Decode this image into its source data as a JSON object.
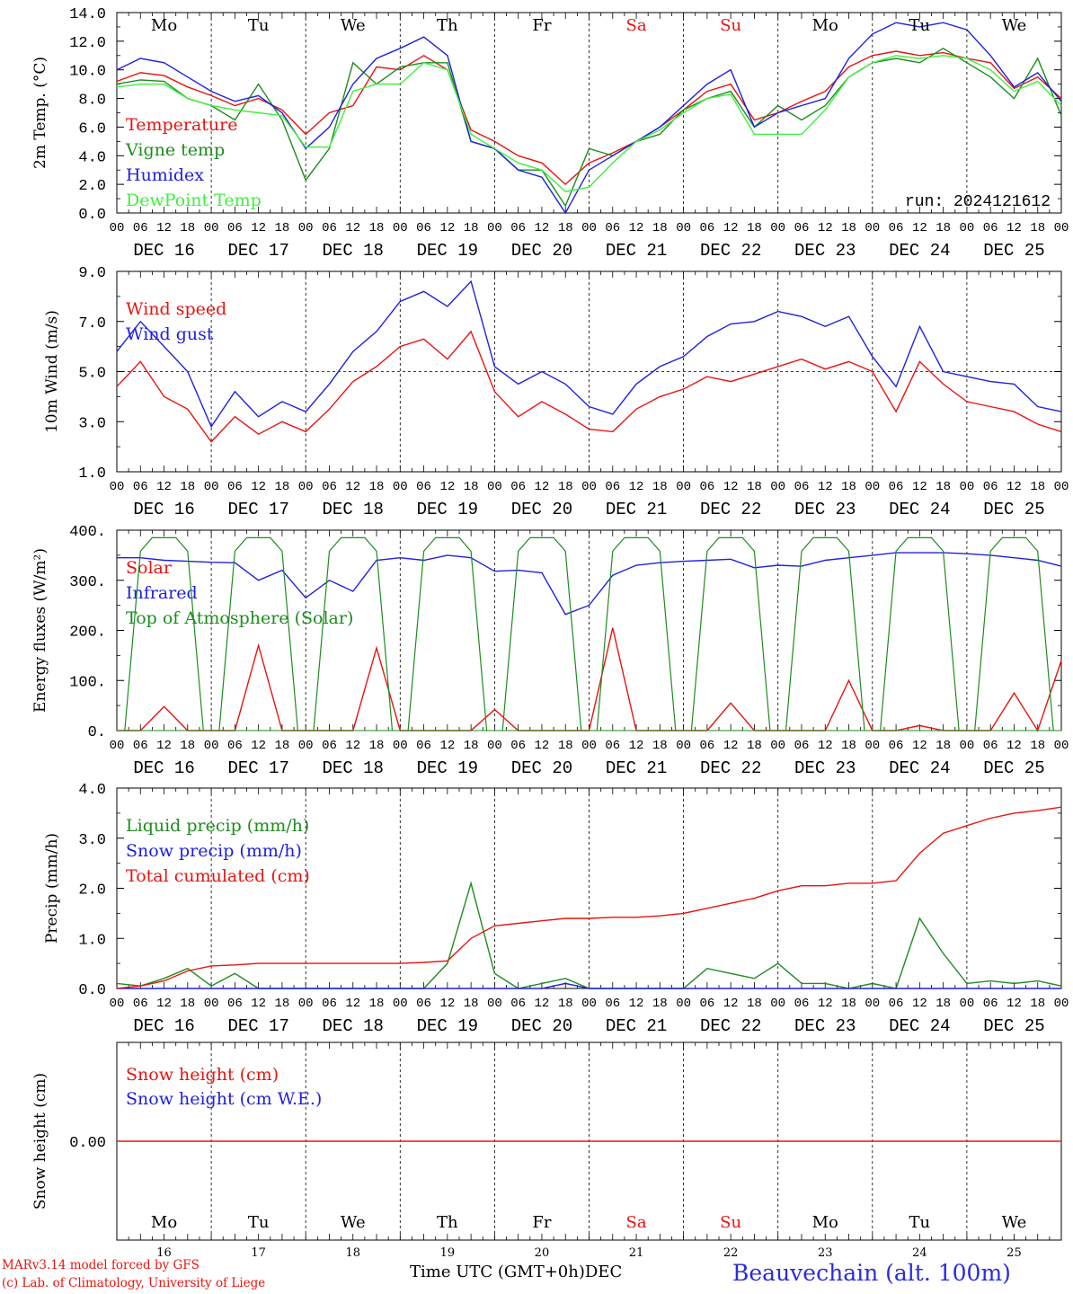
{
  "chart_data": [
    {
      "type": "line",
      "panel": "temperature",
      "ylabel": "2m Temp. (°C)",
      "ylim": [
        0,
        14
      ],
      "yticks": [
        "0.0",
        "2.0",
        "4.0",
        "6.0",
        "8.0",
        "10.0",
        "12.0",
        "14.0"
      ],
      "yticks_values": [
        0,
        2,
        4,
        6,
        8,
        10,
        12,
        14
      ],
      "weekday_labels": [
        "Mo",
        "Tu",
        "We",
        "Th",
        "Fr",
        "Sa",
        "Su",
        "Mo",
        "Tu",
        "We"
      ],
      "weekday_colors": [
        "#000000",
        "#000000",
        "#000000",
        "#000000",
        "#000000",
        "#e8140f",
        "#e8140f",
        "#000000",
        "#000000",
        "#000000"
      ],
      "annotation": "run: 2024121612",
      "x_hours": [
        0,
        6,
        12,
        18,
        24,
        30,
        36,
        42,
        48,
        54,
        60,
        66,
        72,
        78,
        84,
        90,
        96,
        102,
        108,
        114,
        120,
        126,
        132,
        138,
        144,
        150,
        156,
        162,
        168,
        174,
        180,
        186,
        192,
        198,
        204,
        210,
        216,
        222,
        228,
        234,
        240
      ],
      "series": [
        {
          "name": "Temperature",
          "color": "#e8140f",
          "values": [
            9.2,
            9.8,
            9.6,
            8.8,
            8.2,
            7.5,
            8.0,
            7.2,
            5.5,
            7.0,
            7.5,
            10.2,
            10.0,
            11.0,
            10.0,
            5.8,
            5.0,
            4.0,
            3.5,
            2.0,
            3.5,
            4.2,
            5.0,
            6.0,
            7.2,
            8.5,
            9.0,
            6.5,
            7.0,
            7.8,
            8.5,
            10.2,
            11.0,
            11.3,
            11.0,
            11.2,
            10.8,
            10.5,
            8.7,
            9.5,
            8.0
          ]
        },
        {
          "name": "Vigne temp",
          "color": "#1e8c1e",
          "values": [
            9.0,
            9.3,
            9.2,
            8.0,
            7.5,
            6.5,
            9.0,
            6.5,
            2.3,
            4.5,
            10.5,
            9.0,
            10.2,
            10.5,
            10.5,
            5.0,
            4.5,
            3.0,
            3.0,
            0.5,
            4.5,
            4.0,
            5.0,
            5.5,
            7.2,
            8.0,
            8.5,
            6.0,
            7.5,
            6.5,
            7.5,
            9.5,
            10.5,
            10.8,
            10.5,
            11.5,
            10.5,
            9.5,
            8.0,
            10.8,
            6.8
          ]
        },
        {
          "name": "Humidex",
          "color": "#2020e0",
          "values": [
            10.0,
            10.8,
            10.5,
            9.5,
            8.5,
            7.8,
            8.2,
            7.0,
            4.5,
            6.0,
            9.0,
            10.8,
            11.5,
            12.3,
            11.0,
            5.0,
            4.5,
            3.0,
            2.5,
            0.0,
            3.0,
            4.0,
            5.0,
            6.0,
            7.5,
            9.0,
            10.0,
            6.0,
            7.0,
            7.5,
            8.0,
            10.8,
            12.5,
            13.3,
            13.0,
            13.3,
            12.8,
            11.0,
            8.8,
            9.8,
            7.8
          ]
        },
        {
          "name": "DewPoint Temp",
          "color": "#3ef03e",
          "values": [
            8.8,
            9.0,
            9.0,
            8.0,
            7.5,
            7.2,
            7.0,
            6.8,
            4.6,
            4.6,
            8.5,
            9.0,
            9.0,
            10.5,
            10.0,
            5.5,
            4.5,
            3.5,
            3.0,
            1.5,
            1.8,
            3.5,
            5.0,
            5.8,
            7.0,
            8.0,
            8.3,
            5.5,
            5.5,
            5.5,
            7.2,
            9.5,
            10.5,
            11.0,
            10.8,
            11.0,
            10.8,
            10.0,
            8.5,
            9.2,
            7.5
          ]
        }
      ]
    },
    {
      "type": "line",
      "panel": "wind",
      "ylabel": "10m Wind (m/s)",
      "ylim": [
        1,
        9
      ],
      "yticks": [
        "1.0",
        "3.0",
        "5.0",
        "7.0",
        "9.0"
      ],
      "yticks_values": [
        1,
        3,
        5,
        7,
        9
      ],
      "x_hours": [
        0,
        6,
        12,
        18,
        24,
        30,
        36,
        42,
        48,
        54,
        60,
        66,
        72,
        78,
        84,
        90,
        96,
        102,
        108,
        114,
        120,
        126,
        132,
        138,
        144,
        150,
        156,
        162,
        168,
        174,
        180,
        186,
        192,
        198,
        204,
        210,
        216,
        222,
        228,
        234,
        240
      ],
      "series": [
        {
          "name": "Wind speed",
          "color": "#e8140f",
          "values": [
            4.4,
            5.4,
            4.0,
            3.5,
            2.2,
            3.2,
            2.5,
            3.0,
            2.6,
            3.5,
            4.6,
            5.2,
            6.0,
            6.3,
            5.5,
            6.6,
            4.2,
            3.2,
            3.8,
            3.3,
            2.7,
            2.6,
            3.5,
            4.0,
            4.3,
            4.8,
            4.6,
            4.9,
            5.2,
            5.5,
            5.1,
            5.4,
            5.0,
            3.4,
            5.4,
            4.5,
            3.8,
            3.6,
            3.4,
            2.9,
            2.6
          ]
        },
        {
          "name": "Wind gust",
          "color": "#2020e0",
          "values": [
            5.8,
            7.0,
            6.0,
            5.0,
            2.8,
            4.2,
            3.2,
            3.8,
            3.4,
            4.5,
            5.8,
            6.6,
            7.8,
            8.2,
            7.6,
            8.6,
            5.2,
            4.5,
            5.0,
            4.5,
            3.6,
            3.3,
            4.5,
            5.2,
            5.6,
            6.4,
            6.9,
            7.0,
            7.4,
            7.2,
            6.8,
            7.2,
            5.6,
            4.4,
            6.8,
            5.0,
            4.8,
            4.6,
            4.5,
            3.6,
            3.4
          ]
        }
      ],
      "reference_line": 5.0
    },
    {
      "type": "line",
      "panel": "energy",
      "ylabel": "Energy fluxes (W/m²)",
      "ylim": [
        0,
        400
      ],
      "yticks": [
        "0.",
        "100.",
        "200.",
        "300.",
        "400."
      ],
      "yticks_values": [
        0,
        100,
        200,
        300,
        400
      ],
      "x_hours": [
        0,
        6,
        12,
        18,
        24,
        30,
        36,
        42,
        48,
        54,
        60,
        66,
        72,
        78,
        84,
        90,
        96,
        102,
        108,
        114,
        120,
        126,
        132,
        138,
        144,
        150,
        156,
        162,
        168,
        174,
        180,
        186,
        192,
        198,
        204,
        210,
        216,
        222,
        228,
        234,
        240
      ],
      "series": [
        {
          "name": "Solar",
          "color": "#e8140f",
          "values": [
            0,
            0,
            48,
            0,
            0,
            0,
            170,
            0,
            0,
            0,
            0,
            165,
            0,
            0,
            0,
            0,
            42,
            0,
            0,
            0,
            0,
            205,
            0,
            0,
            0,
            0,
            55,
            0,
            0,
            0,
            0,
            100,
            0,
            0,
            10,
            0,
            0,
            0,
            75,
            0,
            140
          ]
        },
        {
          "name": "Infrared",
          "color": "#2020e0",
          "values": [
            345,
            345,
            340,
            338,
            336,
            335,
            300,
            320,
            265,
            300,
            278,
            340,
            345,
            340,
            350,
            345,
            318,
            320,
            315,
            232,
            250,
            310,
            330,
            335,
            338,
            340,
            342,
            325,
            330,
            328,
            340,
            345,
            350,
            355,
            355,
            355,
            353,
            350,
            345,
            340,
            328
          ]
        },
        {
          "name": "Top of Atmosphere (Solar)",
          "color": "#1e8c1e",
          "daily_peak": 385,
          "peak_hours": [
            12,
            36,
            60,
            84,
            108,
            132,
            156,
            180,
            204,
            228
          ]
        }
      ]
    },
    {
      "type": "line",
      "panel": "precip",
      "ylabel": "Precip (mm/h)",
      "ylim": [
        0,
        4
      ],
      "yticks": [
        "0.0",
        "1.0",
        "2.0",
        "3.0",
        "4.0"
      ],
      "yticks_values": [
        0,
        1,
        2,
        3,
        4
      ],
      "x_hours": [
        0,
        6,
        12,
        18,
        24,
        30,
        36,
        42,
        48,
        54,
        60,
        66,
        72,
        78,
        84,
        90,
        96,
        102,
        108,
        114,
        120,
        126,
        132,
        138,
        144,
        150,
        156,
        162,
        168,
        174,
        180,
        186,
        192,
        198,
        204,
        210,
        216,
        222,
        228,
        234,
        240
      ],
      "series": [
        {
          "name": "Liquid precip (mm/h)",
          "color": "#1e8c1e",
          "values": [
            0.1,
            0.05,
            0.2,
            0.4,
            0.05,
            0.3,
            0.0,
            0.0,
            0.0,
            0.0,
            0.0,
            0.0,
            0.0,
            0.0,
            0.5,
            2.1,
            0.3,
            0.0,
            0.1,
            0.2,
            0.0,
            0.0,
            0.0,
            0.0,
            0.0,
            0.4,
            0.3,
            0.2,
            0.5,
            0.1,
            0.1,
            0.0,
            0.1,
            0.0,
            1.4,
            0.7,
            0.1,
            0.15,
            0.1,
            0.15,
            0.05
          ]
        },
        {
          "name": "Snow precip (mm/h)",
          "color": "#2020e0",
          "values": [
            0,
            0,
            0,
            0,
            0,
            0,
            0,
            0,
            0,
            0,
            0,
            0,
            0,
            0,
            0,
            0,
            0,
            0,
            0,
            0.1,
            0,
            0,
            0,
            0,
            0,
            0,
            0,
            0,
            0,
            0,
            0,
            0,
            0,
            0,
            0,
            0,
            0,
            0,
            0,
            0,
            0
          ]
        },
        {
          "name": "Total cumulated (cm)",
          "color": "#e8140f",
          "values": [
            0.0,
            0.05,
            0.15,
            0.35,
            0.45,
            0.47,
            0.5,
            0.5,
            0.5,
            0.5,
            0.5,
            0.5,
            0.5,
            0.52,
            0.55,
            1.0,
            1.25,
            1.3,
            1.35,
            1.4,
            1.4,
            1.42,
            1.42,
            1.45,
            1.5,
            1.6,
            1.7,
            1.8,
            1.95,
            2.05,
            2.05,
            2.1,
            2.1,
            2.15,
            2.7,
            3.1,
            3.25,
            3.4,
            3.5,
            3.55,
            3.62
          ]
        }
      ]
    },
    {
      "type": "line",
      "panel": "snow",
      "ylabel": "Snow height (cm)",
      "yticks": [
        "0.00"
      ],
      "yticks_values": [
        0
      ],
      "series": [
        {
          "name": "Snow height (cm)",
          "color": "#e8140f",
          "values": [
            0,
            0
          ]
        },
        {
          "name": "Snow height (cm W.E.)",
          "color": "#2020e0",
          "values": [
            0,
            0
          ]
        }
      ],
      "weekday_labels": [
        "Mo",
        "Tu",
        "We",
        "Th",
        "Fr",
        "Sa",
        "Su",
        "Mo",
        "Tu",
        "We"
      ],
      "weekday_colors": [
        "#000000",
        "#000000",
        "#000000",
        "#000000",
        "#000000",
        "#e8140f",
        "#e8140f",
        "#000000",
        "#000000",
        "#000000"
      ],
      "day_numbers": [
        "16",
        "17",
        "18",
        "19",
        "20",
        "21",
        "22",
        "23",
        "24",
        "25"
      ]
    }
  ],
  "axis": {
    "hour_ticks": [
      "00",
      "06",
      "12",
      "18"
    ],
    "day_labels": [
      "DEC 16",
      "DEC 17",
      "DEC 18",
      "DEC 19",
      "DEC 20",
      "DEC 21",
      "DEC 22",
      "DEC 23",
      "DEC 24",
      "DEC 25"
    ],
    "final_tick": "00"
  },
  "footer": {
    "credit_line1": "MARv3.14 model forced by GFS",
    "credit_line2": "(c) Lab. of Climatology, University of Liege",
    "xlabel": "Time UTC (GMT+0h)",
    "month": "DEC",
    "station": "Beauvechain (alt. 100m)"
  }
}
